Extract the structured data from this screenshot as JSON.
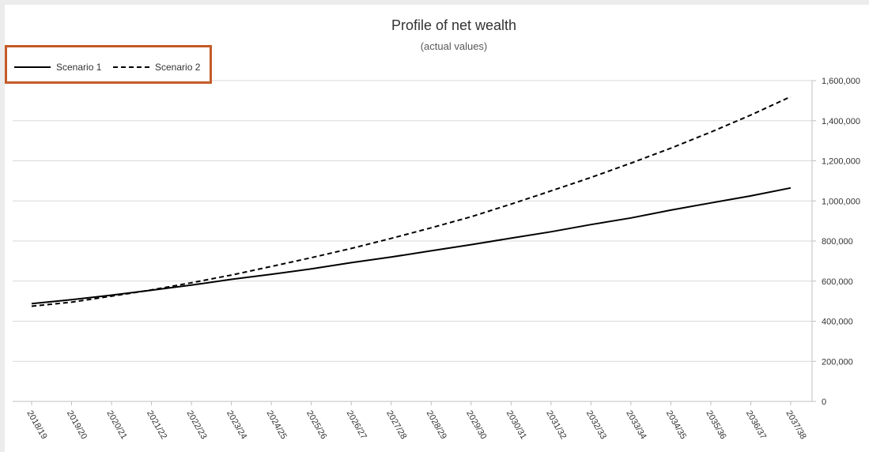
{
  "chart_data": {
    "type": "line",
    "title": "Profile of net wealth",
    "subtitle": "(actual values)",
    "xlabel": "",
    "ylabel": "",
    "categories": [
      "2018/19",
      "2019/20",
      "2020/21",
      "2021/22",
      "2022/23",
      "2023/24",
      "2024/25",
      "2025/26",
      "2026/27",
      "2027/28",
      "2028/29",
      "2029/30",
      "2030/31",
      "2031/32",
      "2032/33",
      "2033/34",
      "2034/35",
      "2035/36",
      "2036/37",
      "2037/38"
    ],
    "series": [
      {
        "name": "Scenario 1",
        "style": "solid",
        "color": "#000000",
        "values": [
          488000,
          507000,
          530000,
          555000,
          580000,
          609000,
          634000,
          661000,
          692000,
          720000,
          751000,
          782000,
          814000,
          846000,
          882000,
          915000,
          954000,
          990000,
          1025000,
          1065000
        ]
      },
      {
        "name": "Scenario 2",
        "style": "dashed",
        "color": "#000000",
        "values": [
          475000,
          495000,
          525000,
          556000,
          592000,
          630000,
          673000,
          717000,
          763000,
          813000,
          866000,
          921000,
          984000,
          1050000,
          1117000,
          1188000,
          1263000,
          1343000,
          1428000,
          1520000
        ]
      }
    ],
    "ylim": [
      0,
      1600000
    ],
    "yticks": [
      "0",
      "200,000",
      "400,000",
      "600,000",
      "800,000",
      "1,000,000",
      "1,200,000",
      "1,400,000",
      "1,600,000"
    ],
    "y_axis_position": "right",
    "grid": true,
    "legend_position": "top-left",
    "legend_highlight_color": "#c55a28"
  }
}
